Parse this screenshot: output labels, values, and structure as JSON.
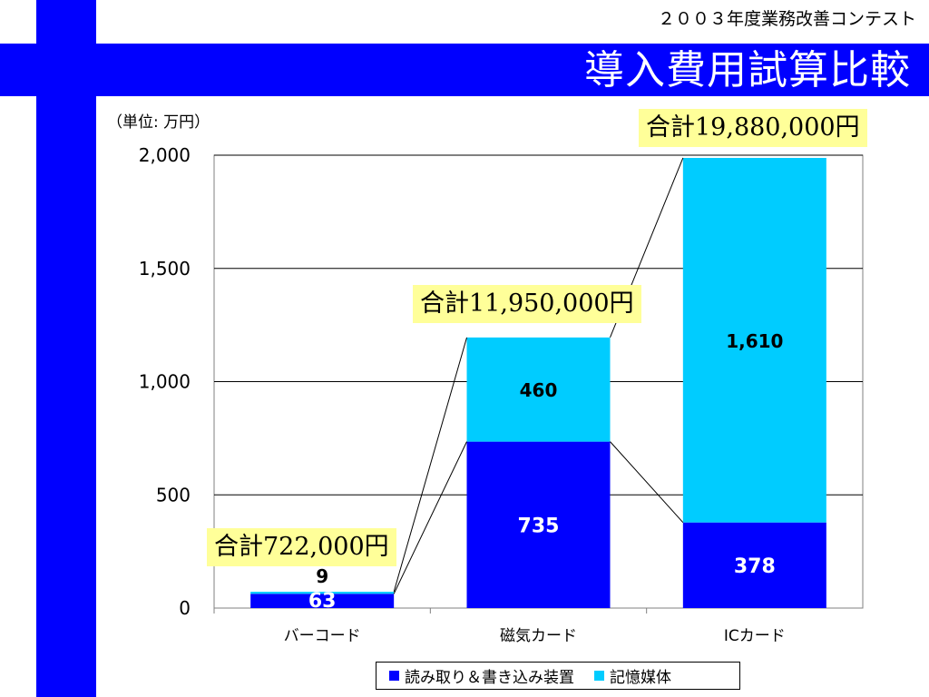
{
  "header": {
    "contest": "２００３年度業務改善コンテスト",
    "title": "導入費用試算比較"
  },
  "unit_label": "（単位: 万円）",
  "totals": {
    "barcode": "合計722,000円",
    "magnetic": "合計11,950,000円",
    "ic": "合計19,880,000円"
  },
  "colors": {
    "brand": "#0000ff",
    "series1": "#0000ff",
    "series2": "#00ccff",
    "callout": "#ffff99"
  },
  "chart_data": {
    "type": "bar",
    "stacked": true,
    "categories": [
      "バーコード",
      "磁気カード",
      "ICカード"
    ],
    "series": [
      {
        "name": "読み取り＆書き込み装置",
        "values": [
          63,
          735,
          378
        ]
      },
      {
        "name": "記憶媒体",
        "values": [
          9,
          460,
          1610
        ]
      }
    ],
    "ylim": [
      0,
      2000
    ],
    "yticks": [
      "0",
      "500",
      "1,000",
      "1,500",
      "2,000"
    ],
    "grid": true,
    "legend_position": "bottom",
    "data_labels": [
      [
        "63",
        "735",
        "378"
      ],
      [
        "9",
        "460",
        "1,610"
      ]
    ]
  }
}
